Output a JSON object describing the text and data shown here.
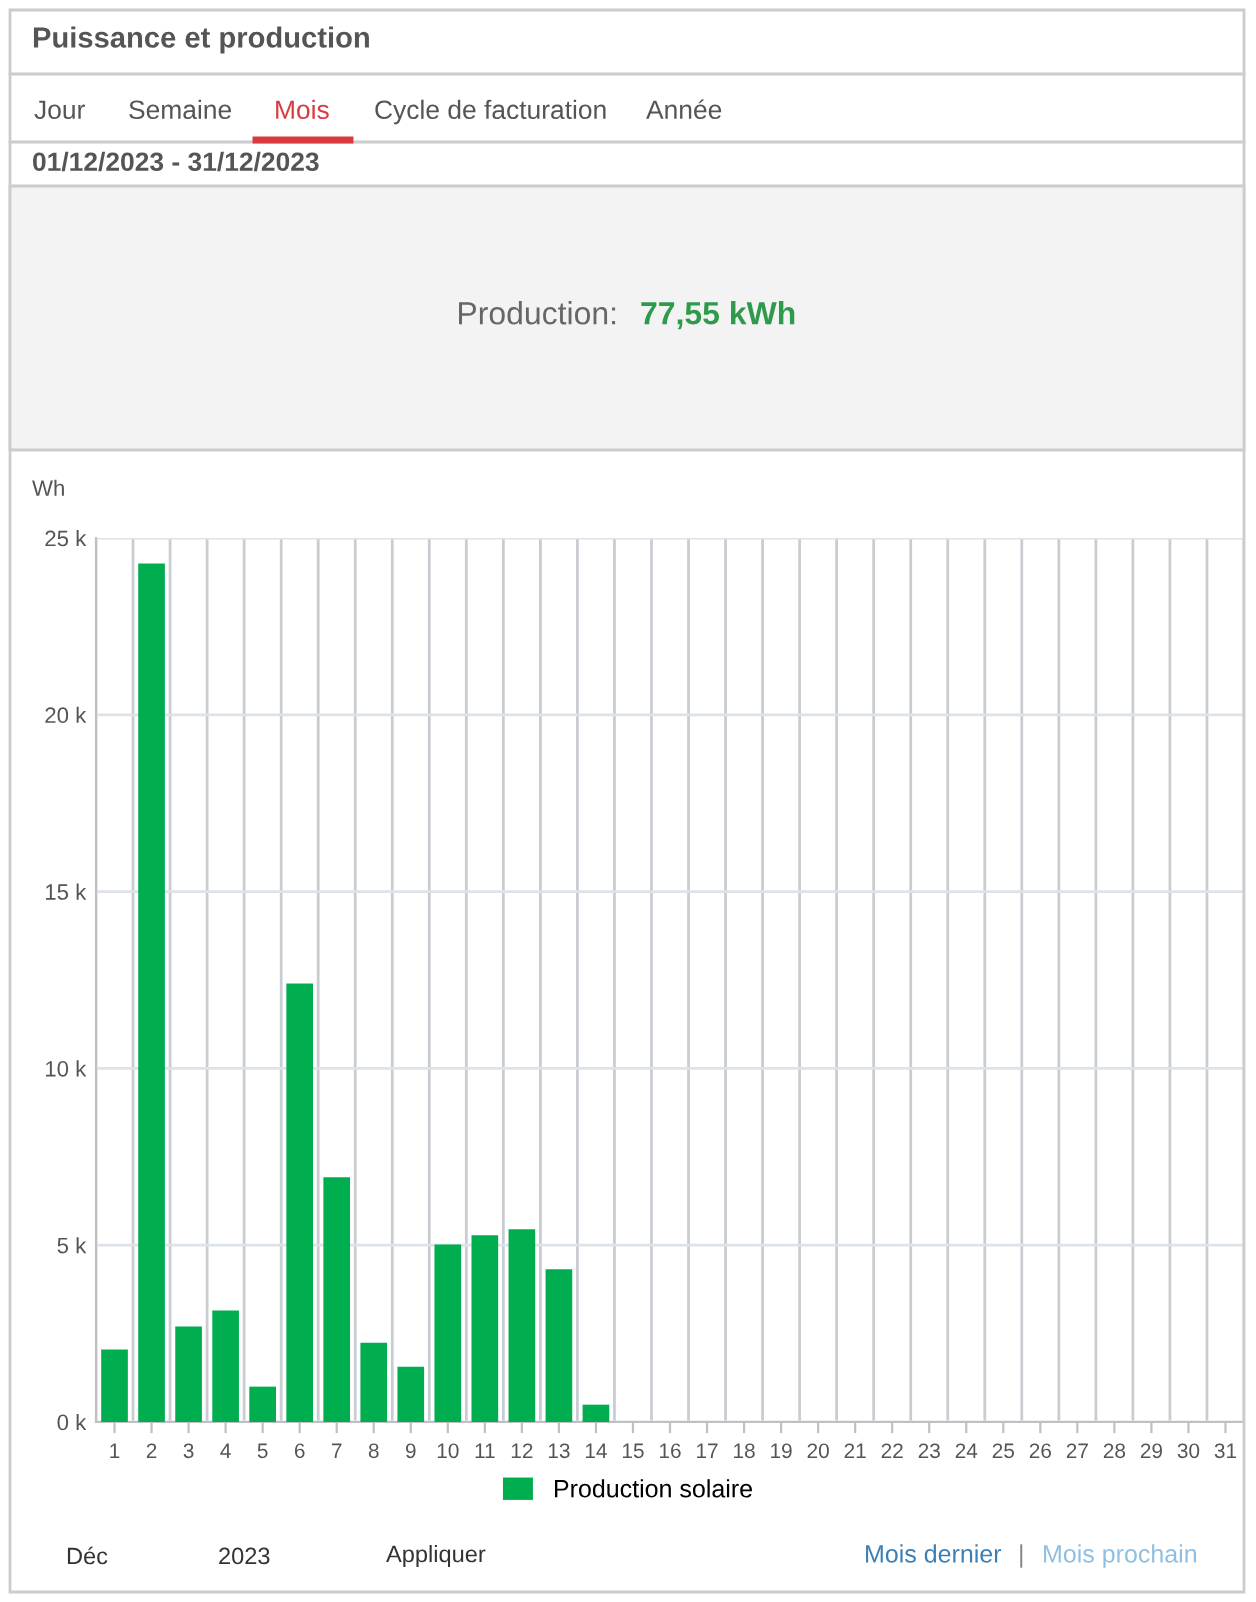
{
  "chart_data": {
    "type": "bar",
    "title": "Puissance et production",
    "subtitle": "01/12/2023 - 31/12/2023",
    "ylabel": "Wh",
    "annotations": [
      "Jour",
      "Semaine",
      "Mois",
      "Cycle de facturation",
      "Année",
      "Production:",
      "77,55 kWh",
      "Déc",
      "2023",
      "Appliquer",
      "Mois dernier",
      "|",
      "Mois prochain"
    ],
    "categories": [
      "1",
      "2",
      "3",
      "4",
      "5",
      "6",
      "7",
      "8",
      "9",
      "10",
      "11",
      "12",
      "13",
      "14",
      "15",
      "16",
      "17",
      "18",
      "19",
      "20",
      "21",
      "22",
      "23",
      "24",
      "25",
      "26",
      "27",
      "28",
      "29",
      "30",
      "31"
    ],
    "series": [
      {
        "name": "Production solaire",
        "color": "#00ad4f",
        "values": [
          2050,
          24280,
          2700,
          3150,
          1000,
          12400,
          6920,
          2240,
          1560,
          5020,
          5280,
          5450,
          4320,
          490,
          null,
          null,
          null,
          null,
          null,
          null,
          null,
          null,
          null,
          null,
          null,
          null,
          null,
          null,
          null,
          null,
          null
        ]
      }
    ],
    "ylim": [
      0,
      25000
    ],
    "yticks": [
      {
        "value": 0,
        "label": "0 k"
      },
      {
        "value": 5000,
        "label": "5 k"
      },
      {
        "value": 10000,
        "label": "10 k"
      },
      {
        "value": 15000,
        "label": "15 k"
      },
      {
        "value": 20000,
        "label": "20 k"
      },
      {
        "value": 25000,
        "label": "25 k"
      }
    ],
    "grid": true,
    "legend": "bottom"
  }
}
